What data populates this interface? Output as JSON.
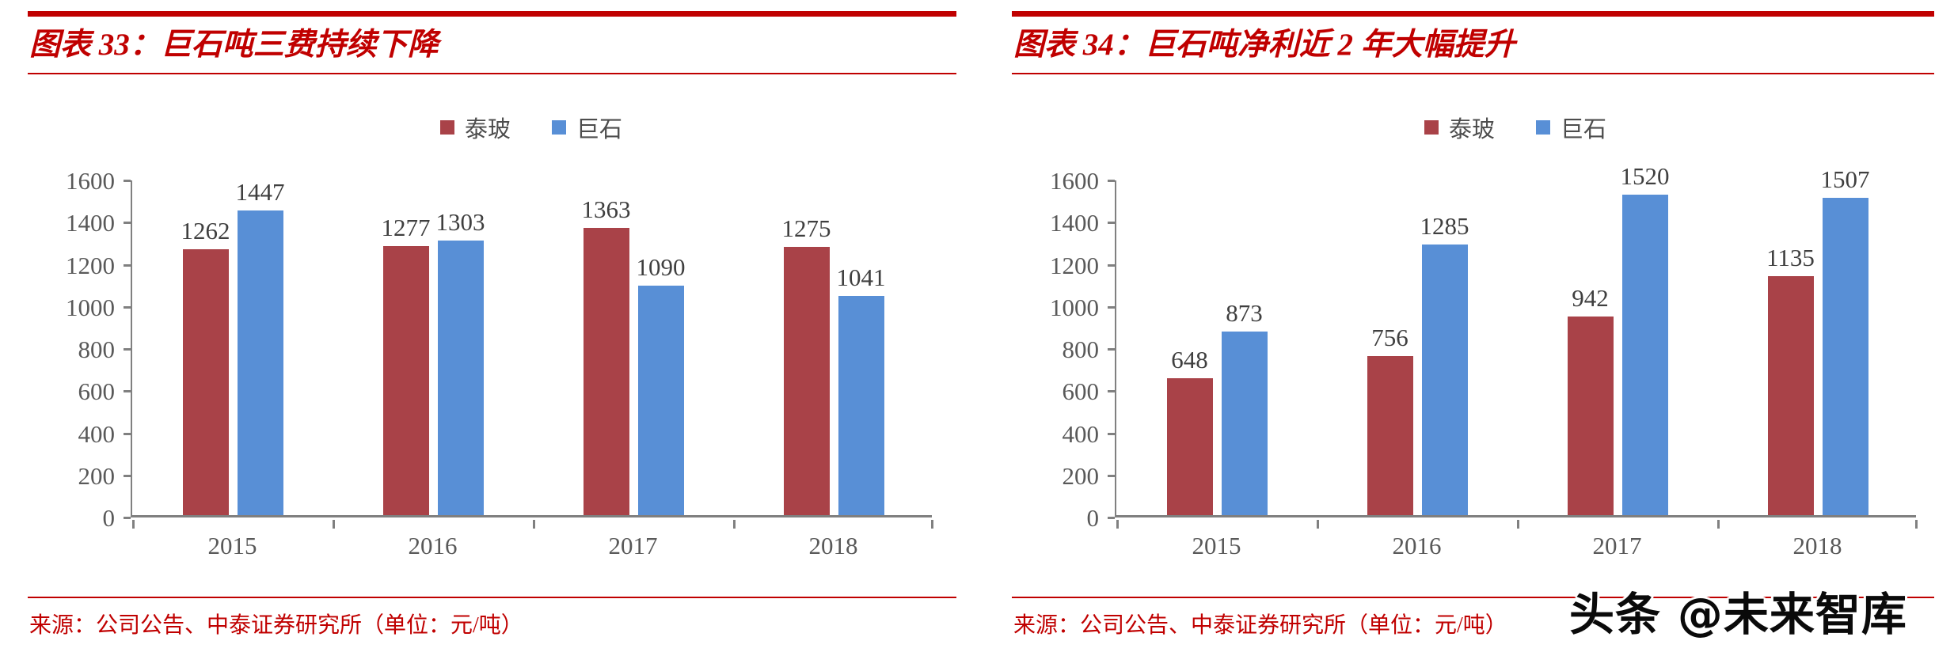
{
  "watermark": "头条 @未来智库",
  "panels": [
    {
      "title": "图表 33：巨石吨三费持续下降",
      "source": "来源：公司公告、中泰证券研究所（单位：元/吨）",
      "chart_data": {
        "type": "bar",
        "title": "巨石吨三费持续下降",
        "categories": [
          "2015",
          "2016",
          "2017",
          "2018"
        ],
        "series": [
          {
            "name": "泰玻",
            "color": "#A94248",
            "values": [
              1262,
              1277,
              1363,
              1275
            ]
          },
          {
            "name": "巨石",
            "color": "#588FD6",
            "values": [
              1447,
              1303,
              1090,
              1041
            ]
          }
        ],
        "xlabel": "",
        "ylabel": "",
        "ylim": [
          0,
          1600
        ],
        "ytick_step": 200,
        "legend_position": "top",
        "grid": false,
        "unit": "元/吨"
      }
    },
    {
      "title": "图表 34：巨石吨净利近 2 年大幅提升",
      "source": "来源：公司公告、中泰证券研究所（单位：元/吨）",
      "chart_data": {
        "type": "bar",
        "title": "巨石吨净利近 2 年大幅提升",
        "categories": [
          "2015",
          "2016",
          "2017",
          "2018"
        ],
        "series": [
          {
            "name": "泰玻",
            "color": "#A94248",
            "values": [
              648,
              756,
              942,
              1135
            ]
          },
          {
            "name": "巨石",
            "color": "#588FD6",
            "values": [
              873,
              1285,
              1520,
              1507
            ]
          }
        ],
        "xlabel": "",
        "ylabel": "",
        "ylim": [
          0,
          1600
        ],
        "ytick_step": 200,
        "legend_position": "top",
        "grid": false,
        "unit": "元/吨"
      }
    }
  ]
}
